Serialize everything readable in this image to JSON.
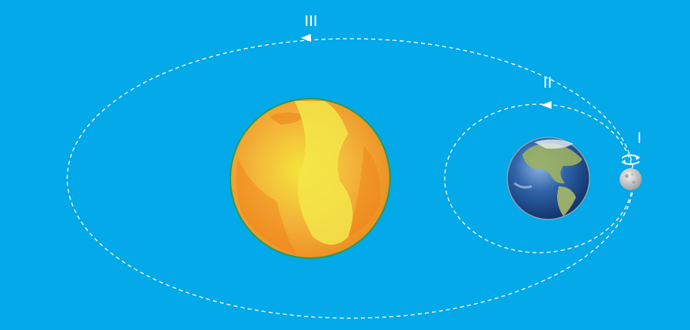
{
  "diagram": {
    "background_color": "#03a9e8",
    "orbit_color": "#ffffff",
    "labels": {
      "moon_rotation": "I",
      "moon_orbit": "II",
      "earth_orbit": "III"
    },
    "icons": {
      "sun": "sun-icon",
      "earth": "earth-icon",
      "moon": "moon-icon",
      "rotation": "rotation-arrow-icon"
    },
    "colors": {
      "sun_outer": "#f08a1c",
      "sun_inner": "#f6e52c",
      "sun_rim": "#2a9a55",
      "earth_ocean": "#1d4e92",
      "earth_land": "#8aa653",
      "moon": "#cfcfcf"
    }
  }
}
